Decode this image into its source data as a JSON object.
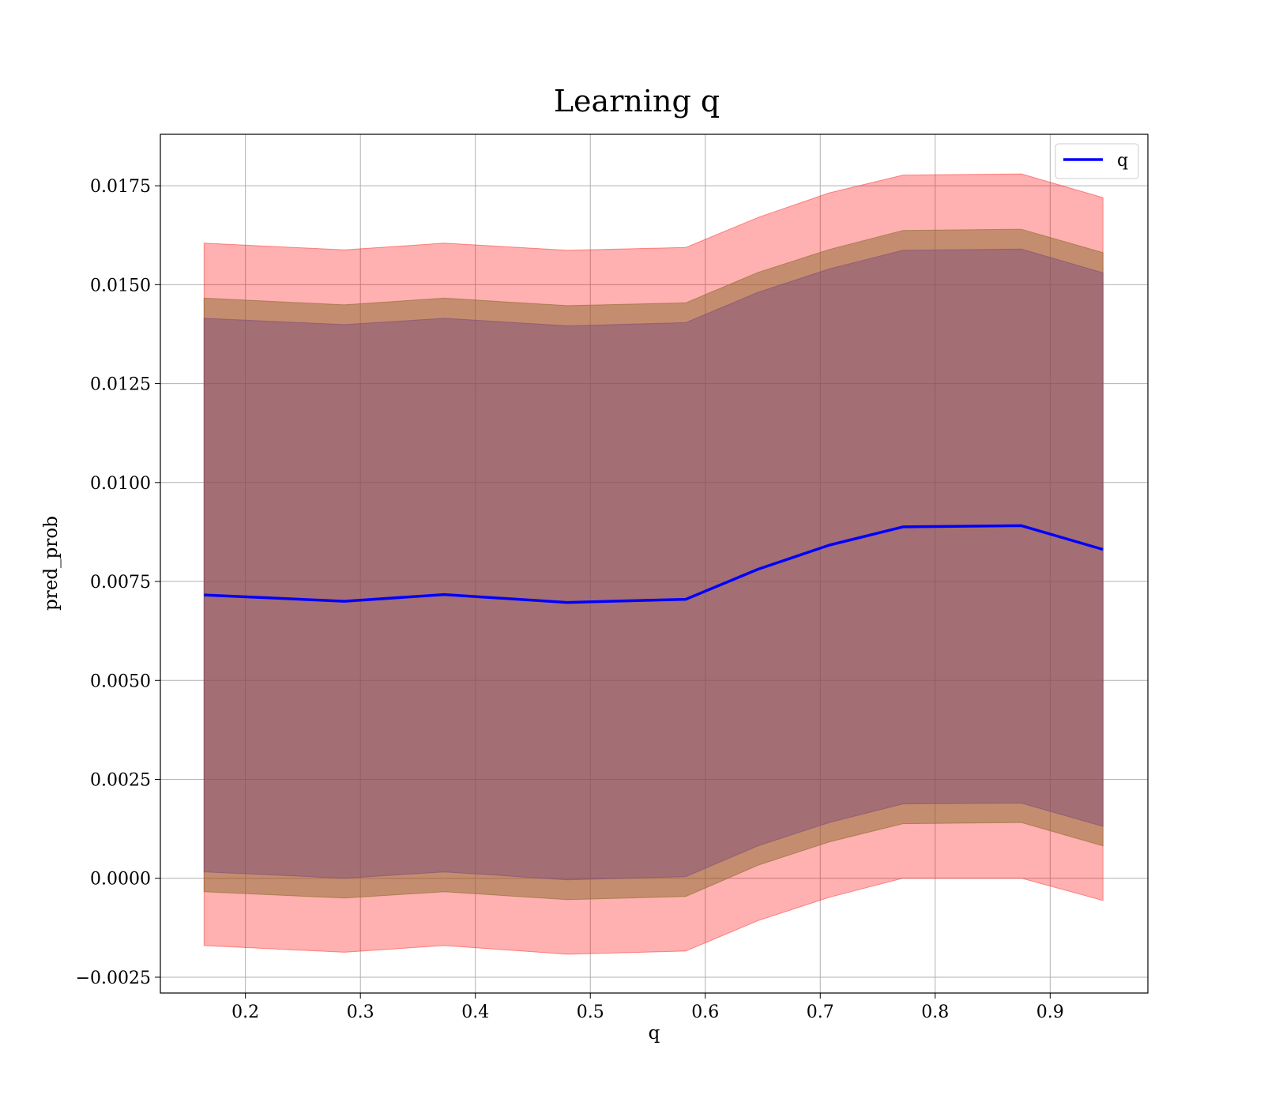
{
  "chart_data": {
    "type": "line",
    "title": "Learning q",
    "xlabel": "q",
    "ylabel": "pred_prob",
    "xlim": [
      0.126,
      0.985
    ],
    "ylim": [
      -0.0029,
      0.0188
    ],
    "grid": true,
    "legend_position": "top-right",
    "x_ticks": [
      0.2,
      0.3,
      0.4,
      0.5,
      0.6,
      0.7,
      0.8,
      0.9
    ],
    "x_tick_labels": [
      "0.2",
      "0.3",
      "0.4",
      "0.5",
      "0.6",
      "0.7",
      "0.8",
      "0.9"
    ],
    "y_ticks": [
      -0.0025,
      0.0,
      0.0025,
      0.005,
      0.0075,
      0.01,
      0.0125,
      0.015,
      0.0175
    ],
    "y_tick_labels": [
      "−0.0025",
      "0.0000",
      "0.0025",
      "0.0050",
      "0.0075",
      "0.0100",
      "0.0125",
      "0.0150",
      "0.0175"
    ],
    "x": [
      0.164,
      0.286,
      0.373,
      0.48,
      0.583,
      0.646,
      0.708,
      0.772,
      0.875,
      0.946
    ],
    "series": [
      {
        "name": "q",
        "color": "#0000ff",
        "values": [
          0.00716,
          0.007,
          0.00717,
          0.00697,
          0.00705,
          0.00781,
          0.00842,
          0.00888,
          0.00891,
          0.00831
        ]
      }
    ],
    "bands": [
      {
        "color": "#ff0000",
        "opacity": 0.31,
        "lower": [
          -0.0017,
          -0.00187,
          -0.0017,
          -0.00192,
          -0.00184,
          -0.00107,
          -0.00048,
          0.0,
          0.0,
          -0.00056
        ],
        "upper": [
          0.01605,
          0.01588,
          0.01605,
          0.01587,
          0.01594,
          0.0167,
          0.01732,
          0.01777,
          0.0178,
          0.0172
        ]
      },
      {
        "color": "#8b6a2e",
        "opacity": 0.5,
        "lower": [
          -0.00034,
          -0.0005,
          -0.00034,
          -0.00054,
          -0.00046,
          0.00033,
          0.00092,
          0.00138,
          0.00141,
          0.00082
        ],
        "upper": [
          0.01466,
          0.01449,
          0.01466,
          0.01447,
          0.01454,
          0.01531,
          0.01589,
          0.01637,
          0.0164,
          0.01581
        ]
      },
      {
        "color": "#7a4a7a",
        "opacity": 0.45,
        "lower": [
          0.00016,
          0.0,
          0.00016,
          -4e-05,
          4e-05,
          0.00082,
          0.00141,
          0.00188,
          0.0019,
          0.00131
        ],
        "upper": [
          0.01415,
          0.01399,
          0.01415,
          0.01396,
          0.01404,
          0.01481,
          0.0154,
          0.01587,
          0.0159,
          0.0153
        ]
      }
    ]
  }
}
